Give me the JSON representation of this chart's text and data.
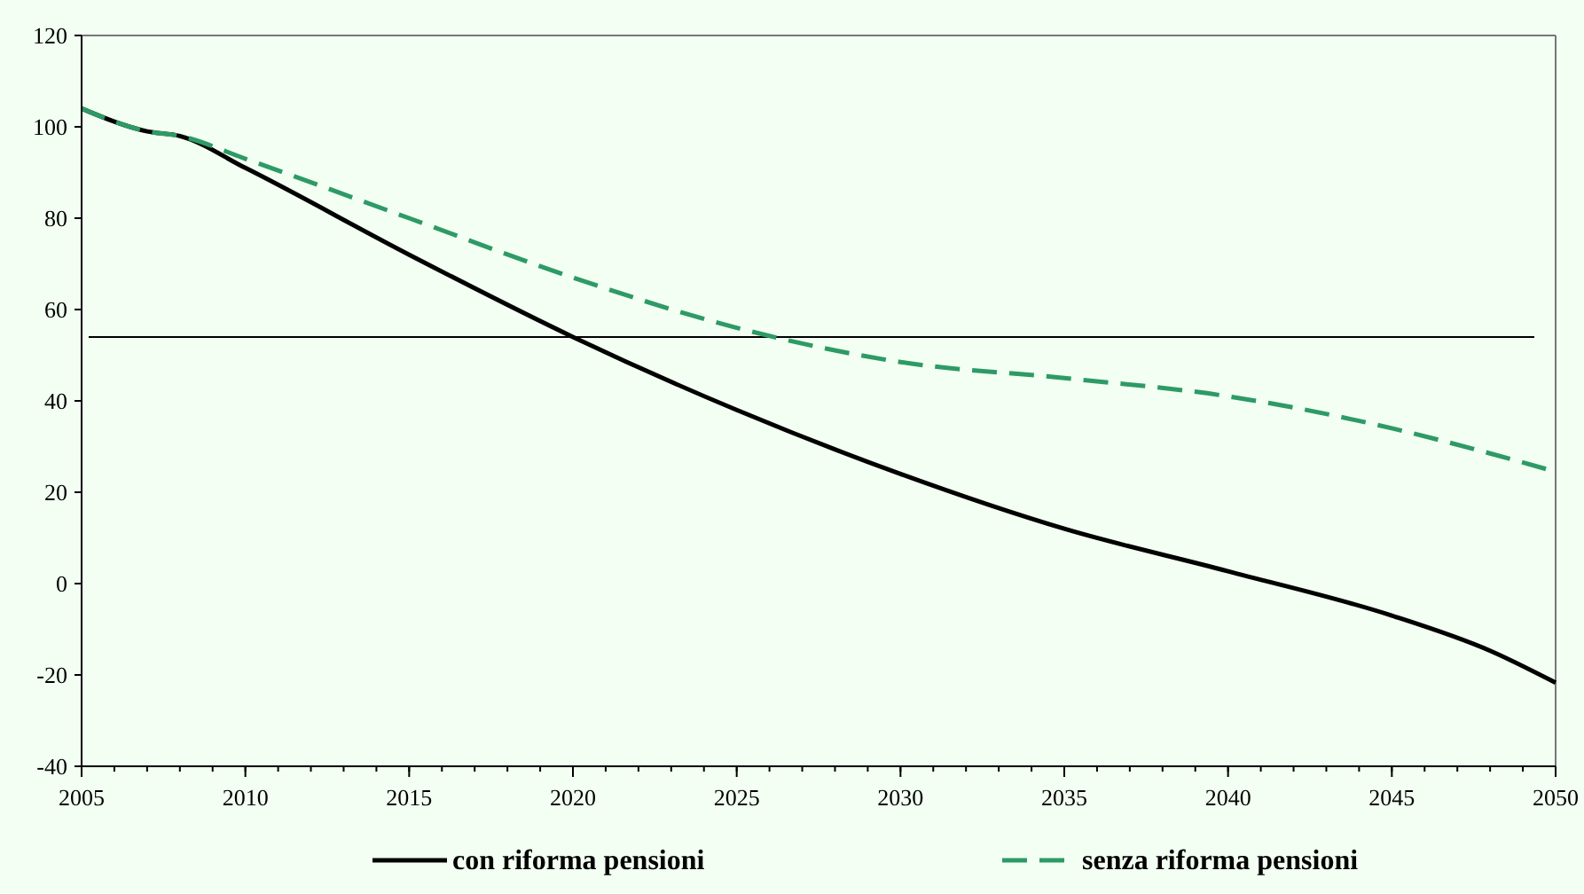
{
  "chart_data": {
    "type": "line",
    "x": [
      2005,
      2007,
      2008,
      2010,
      2015,
      2020,
      2025,
      2030,
      2035,
      2040,
      2045,
      2048,
      2050
    ],
    "series": [
      {
        "name": "con riforma pensioni",
        "color": "#000000",
        "line_style": "solid",
        "values": [
          104,
          99,
          98,
          91,
          72,
          54,
          38,
          24,
          12,
          2.7,
          -7,
          -14.7,
          -21.7
        ]
      },
      {
        "name": "senza riforma pensioni",
        "color": "#2e9a66",
        "line_style": "dashed",
        "values": [
          104,
          99,
          98,
          93,
          80,
          67,
          56,
          48.5,
          45,
          41,
          34,
          28.5,
          24.5
        ]
      }
    ],
    "xlim": [
      2005,
      2050
    ],
    "xticks": [
      2005,
      2010,
      2015,
      2020,
      2025,
      2030,
      2035,
      2040,
      2045,
      2050
    ],
    "ylim": [
      -40,
      120
    ],
    "yticks": [
      -40,
      -20,
      0,
      20,
      40,
      60,
      80,
      100,
      120
    ],
    "ref_lines": [
      {
        "axis": "y",
        "value": 54,
        "color": "#000000"
      }
    ],
    "grid": false,
    "legend": "bottom",
    "marker": "none"
  }
}
